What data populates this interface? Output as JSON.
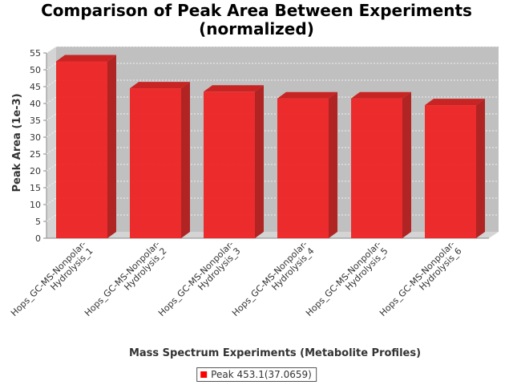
{
  "chart_data": {
    "type": "bar",
    "title": "Comparison of Peak Area Between Experiments (normalized)",
    "title_lines": [
      "Comparison of Peak Area Between Experiments",
      "(normalized)"
    ],
    "xlabel": "Mass Spectrum Experiments (Metabolite Profiles)",
    "ylabel": "Peak Area (1e-3)",
    "ylim": [
      0,
      55
    ],
    "y_ticks": [
      0,
      5,
      10,
      15,
      20,
      25,
      30,
      35,
      40,
      45,
      50,
      55
    ],
    "categories": [
      [
        "Hops_GC-MS-Nonpolar-",
        "Hydrolysis_1"
      ],
      [
        "Hops_GC-MS-Nonpolar-",
        "Hydrolysis_2"
      ],
      [
        "Hops_GC-MS-Nonpolar-",
        "Hydrolysis_3"
      ],
      [
        "Hops_GC-MS-Nonpolar-",
        "Hydrolysis_4"
      ],
      [
        "Hops_GC-MS-Nonpolar-",
        "Hydrolysis_5"
      ],
      [
        "Hops_GC-MS-Nonpolar-",
        "Hydrolysis_6"
      ]
    ],
    "series": [
      {
        "name": "Peak 453.1(37.0659)",
        "values": [
          52.5,
          44.5,
          43.5,
          41.5,
          41.5,
          39.5
        ]
      }
    ],
    "grid": true,
    "legend_position": "bottom-center",
    "colors": {
      "bar_front": "#ee2424",
      "bar_side": "#b02424",
      "bar_top": "#c82424",
      "plot_bg": "#c0c0c0",
      "plot_floor": "#d4d4d4",
      "plot_side": "#d4d4d4",
      "grid": "#ffffff",
      "legend_swatch": "#ff0000"
    }
  }
}
